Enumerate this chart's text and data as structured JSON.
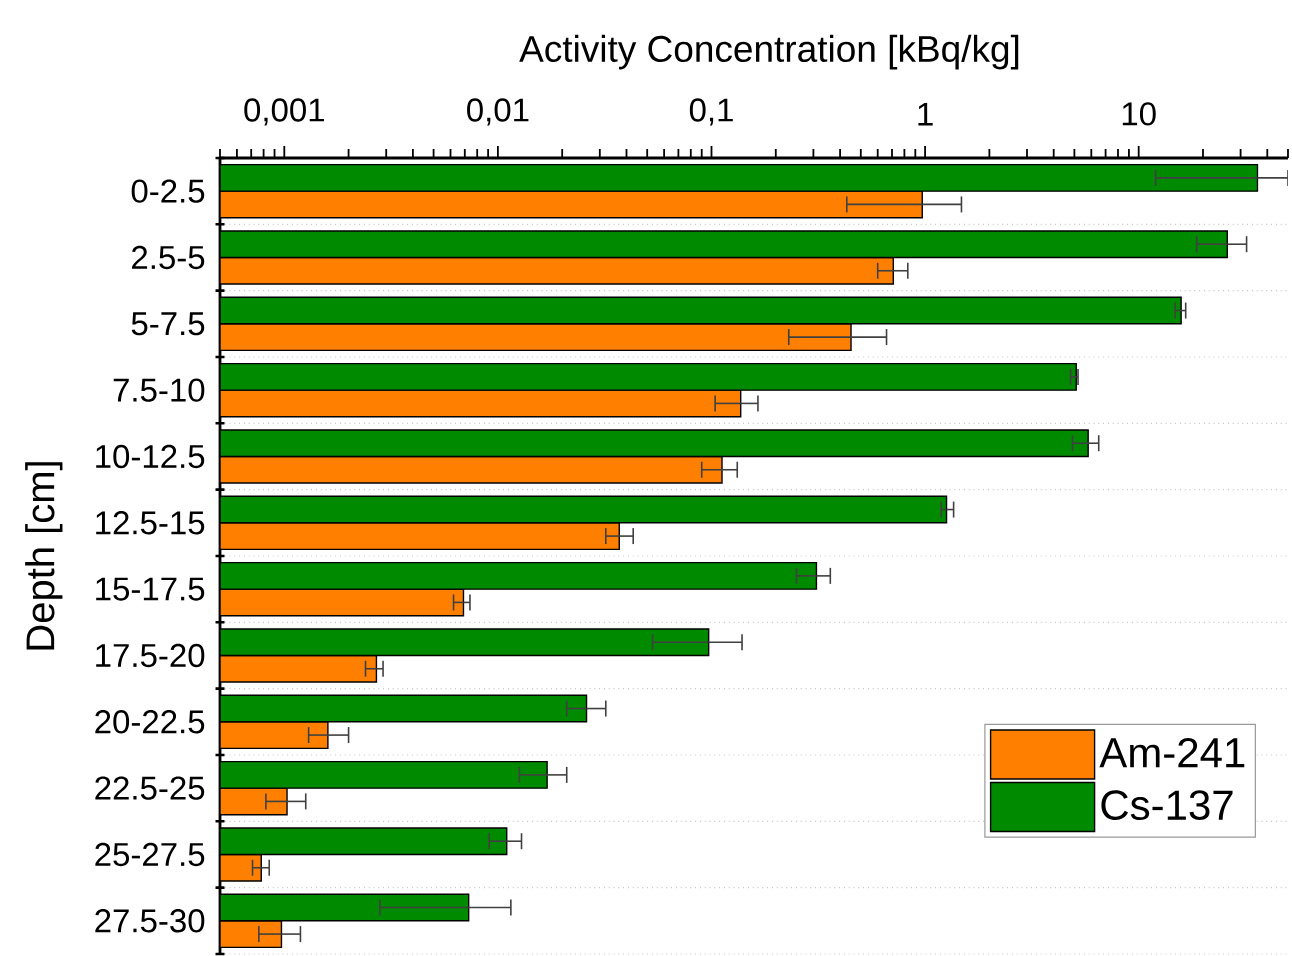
{
  "chart_data": {
    "type": "bar",
    "orientation": "horizontal",
    "xlabel": "Activity Concentration [kBq/kg]",
    "ylabel": "Depth [cm]",
    "categories": [
      "0-2.5",
      "2.5-5",
      "5-7.5",
      "7.5-10",
      "10-12.5",
      "12.5-15",
      "15-17.5",
      "17.5-20",
      "20-22.5",
      "22.5-25",
      "25-27.5",
      "27.5-30"
    ],
    "series": [
      {
        "name": "Am-241",
        "color": "#ff8000",
        "values": [
          0.97,
          0.71,
          0.45,
          0.137,
          0.112,
          0.037,
          0.0069,
          0.0027,
          0.0016,
          0.00103,
          0.00078,
          0.00097
        ],
        "errors": [
          [
            0.43,
            1.48
          ],
          [
            0.6,
            0.83
          ],
          [
            0.23,
            0.66
          ],
          [
            0.104,
            0.165
          ],
          [
            0.09,
            0.132
          ],
          [
            0.032,
            0.043
          ],
          [
            0.0062,
            0.0074
          ],
          [
            0.0024,
            0.0029
          ],
          [
            0.0013,
            0.002
          ],
          [
            0.00082,
            0.00126
          ],
          [
            0.00071,
            0.00085
          ],
          [
            0.00076,
            0.00119
          ]
        ]
      },
      {
        "name": "Cs-137",
        "color": "#008a00",
        "values": [
          36,
          26,
          15.8,
          5.1,
          5.8,
          1.26,
          0.31,
          0.097,
          0.026,
          0.017,
          0.011,
          0.0073
        ],
        "errors": [
          [
            12,
            50
          ],
          [
            18.7,
            32
          ],
          [
            14.8,
            16.6
          ],
          [
            4.8,
            5.2
          ],
          [
            4.9,
            6.5
          ],
          [
            1.19,
            1.36
          ],
          [
            0.25,
            0.36
          ],
          [
            0.053,
            0.139
          ],
          [
            0.021,
            0.032
          ],
          [
            0.0126,
            0.021
          ],
          [
            0.0091,
            0.0129
          ],
          [
            0.0028,
            0.0115
          ]
        ]
      }
    ],
    "xlim": [
      0.0005,
      50
    ],
    "xticks": [
      {
        "value": 0.0005,
        "label": null
      },
      {
        "value": 0.0006,
        "label": null
      },
      {
        "value": 0.0007,
        "label": null
      },
      {
        "value": 0.0008,
        "label": null
      },
      {
        "value": 0.0009,
        "label": null
      },
      {
        "value": 0.001,
        "label": "0,001"
      },
      {
        "value": 0.002,
        "label": null
      },
      {
        "value": 0.003,
        "label": null
      },
      {
        "value": 0.004,
        "label": null
      },
      {
        "value": 0.005,
        "label": null
      },
      {
        "value": 0.006,
        "label": null
      },
      {
        "value": 0.007,
        "label": null
      },
      {
        "value": 0.008,
        "label": null
      },
      {
        "value": 0.009,
        "label": null
      },
      {
        "value": 0.01,
        "label": "0,01"
      },
      {
        "value": 0.02,
        "label": null
      },
      {
        "value": 0.03,
        "label": null
      },
      {
        "value": 0.04,
        "label": null
      },
      {
        "value": 0.05,
        "label": null
      },
      {
        "value": 0.06,
        "label": null
      },
      {
        "value": 0.07,
        "label": null
      },
      {
        "value": 0.08,
        "label": null
      },
      {
        "value": 0.09,
        "label": null
      },
      {
        "value": 0.1,
        "label": "0,1"
      },
      {
        "value": 0.2,
        "label": null
      },
      {
        "value": 0.3,
        "label": null
      },
      {
        "value": 0.4,
        "label": null
      },
      {
        "value": 0.5,
        "label": null
      },
      {
        "value": 0.6,
        "label": null
      },
      {
        "value": 0.7,
        "label": null
      },
      {
        "value": 0.8,
        "label": null
      },
      {
        "value": 0.9,
        "label": null
      },
      1,
      {
        "value": 2,
        "label": null
      },
      {
        "value": 3,
        "label": null
      },
      {
        "value": 4,
        "label": null
      },
      {
        "value": 5,
        "label": null
      },
      {
        "value": 6,
        "label": null
      },
      {
        "value": 7,
        "label": null
      },
      {
        "value": 8,
        "label": null
      },
      {
        "value": 9,
        "label": null
      },
      10,
      {
        "value": 20,
        "label": null
      },
      {
        "value": 30,
        "label": null
      },
      {
        "value": 40,
        "label": null
      },
      {
        "value": 50,
        "label": null
      }
    ],
    "log": "x",
    "grid": "y",
    "legend": "bottom right"
  }
}
